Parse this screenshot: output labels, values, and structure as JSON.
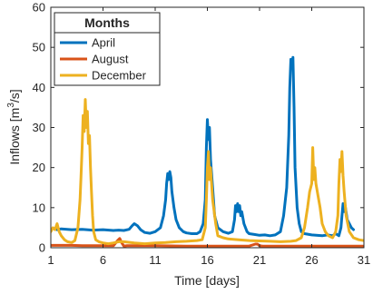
{
  "chart_data": {
    "type": "line",
    "xlabel": "Time [days]",
    "ylabel_main": "Inflows [m",
    "ylabel_sup": "3",
    "ylabel_tail": "/s]",
    "xlim": [
      1,
      31
    ],
    "ylim": [
      0,
      60
    ],
    "xticks": [
      1,
      6,
      11,
      16,
      21,
      26,
      31
    ],
    "yticks": [
      0,
      10,
      20,
      30,
      40,
      50,
      60
    ],
    "grid": false,
    "legend": {
      "title": "Months",
      "placement": "top-left"
    },
    "series": [
      {
        "name": "April",
        "color": "#0072BD",
        "x": [
          1,
          1.3,
          1.6,
          2,
          3,
          4,
          5,
          6,
          7,
          7.5,
          8,
          8.5,
          8.8,
          9,
          9.3,
          9.6,
          10,
          10.5,
          11,
          11.5,
          11.8,
          12,
          12.1,
          12.2,
          12.3,
          12.4,
          12.5,
          12.6,
          12.8,
          13,
          13.3,
          13.7,
          14,
          14.5,
          15,
          15.3,
          15.6,
          15.8,
          15.9,
          16,
          16.1,
          16.2,
          16.3,
          16.5,
          16.7,
          17,
          17.5,
          18,
          18.4,
          18.6,
          18.7,
          18.8,
          18.9,
          19,
          19.1,
          19.2,
          19.3,
          19.5,
          19.8,
          20,
          20.5,
          21,
          21.5,
          22,
          22.5,
          23,
          23.3,
          23.6,
          23.8,
          23.9,
          24,
          24.1,
          24.2,
          24.3,
          24.4,
          24.6,
          24.8,
          25,
          25.3,
          26,
          27,
          27.5,
          28,
          28.3,
          28.6,
          28.8,
          28.9,
          29,
          29.1,
          29.2,
          29.4,
          29.6,
          29.8,
          30
        ],
        "y": [
          4.6,
          4.8,
          4.5,
          4.7,
          4.5,
          4.6,
          4.4,
          4.5,
          4.3,
          4.4,
          4.3,
          4.6,
          5.5,
          6,
          5.5,
          4.5,
          3.8,
          3.6,
          4,
          5,
          8,
          12,
          16,
          18.5,
          17,
          19,
          17.5,
          14,
          10,
          7,
          5,
          4,
          3.7,
          3.5,
          3.5,
          4,
          6,
          12,
          25,
          32,
          27,
          30,
          22,
          15,
          8,
          5,
          4,
          3.6,
          4,
          7,
          10.5,
          9,
          11,
          9,
          10.5,
          8,
          9,
          6,
          4,
          3.5,
          3.3,
          3.1,
          3.2,
          3,
          3.2,
          4,
          8,
          15,
          28,
          40,
          47,
          45,
          47.5,
          35,
          20,
          10,
          6,
          4,
          3.5,
          3.2,
          3,
          3.2,
          3,
          3.5,
          3,
          5,
          8,
          11,
          9,
          10.5,
          7,
          6,
          5,
          4.5
        ]
      },
      {
        "name": "August",
        "color": "#D95319",
        "x": [
          1,
          2,
          3,
          4,
          5,
          6,
          7,
          7.4,
          7.6,
          7.8,
          8,
          8.3,
          9,
          11,
          14,
          17,
          20,
          20.6,
          20.8,
          21,
          21.3,
          22,
          24,
          26,
          28,
          30,
          31
        ],
        "y": [
          0.6,
          0.6,
          0.6,
          0.5,
          0.5,
          0.5,
          0.5,
          1.8,
          2.3,
          1.2,
          0.4,
          0.5,
          0.5,
          0.5,
          0.4,
          0.4,
          0.4,
          0.9,
          0.9,
          0.5,
          0.4,
          0.4,
          0.4,
          0.4,
          0.4,
          0.4,
          0.4
        ]
      },
      {
        "name": "December",
        "color": "#EDB120",
        "x": [
          1,
          1.2,
          1.4,
          1.6,
          1.8,
          2,
          2.3,
          2.6,
          3,
          3.3,
          3.6,
          3.8,
          3.9,
          4,
          4.1,
          4.2,
          4.3,
          4.4,
          4.5,
          4.6,
          4.7,
          4.8,
          4.9,
          5,
          5.1,
          5.3,
          5.6,
          6,
          6.5,
          7,
          7.5,
          8,
          9,
          10,
          11,
          12,
          13,
          14,
          15,
          15.5,
          15.8,
          15.9,
          16,
          16.1,
          16.2,
          16.3,
          16.5,
          16.8,
          17,
          17.5,
          18,
          19,
          20,
          21,
          22,
          23,
          24,
          24.5,
          25,
          25.3,
          25.6,
          25.8,
          26,
          26.1,
          26.2,
          26.3,
          26.4,
          26.6,
          26.8,
          27,
          27.3,
          27.6,
          28,
          28.3,
          28.5,
          28.6,
          28.7,
          28.8,
          28.9,
          29,
          29.1,
          29.3,
          29.6,
          30,
          30.5,
          31
        ],
        "y": [
          4,
          5,
          4.5,
          6,
          4,
          3,
          2,
          1.5,
          1.3,
          1.8,
          5,
          12,
          18,
          25,
          33,
          29,
          37,
          30,
          34,
          26,
          28,
          20,
          14,
          8,
          4,
          2,
          1.5,
          1.2,
          1,
          1.2,
          1.5,
          1.5,
          1.2,
          1,
          1.2,
          1.3,
          1.5,
          1.6,
          1.8,
          2,
          5,
          12,
          20,
          24,
          17,
          20,
          12,
          6,
          3,
          2.5,
          2.2,
          2,
          1.8,
          1.7,
          1.6,
          1.5,
          1.6,
          1.8,
          2.5,
          5,
          10,
          14,
          16,
          25,
          17,
          20,
          16,
          13,
          10,
          6,
          4,
          3,
          2.5,
          4,
          8,
          16,
          22,
          19,
          24,
          18,
          14,
          8,
          4,
          2.5,
          2,
          1.8
        ]
      }
    ]
  }
}
